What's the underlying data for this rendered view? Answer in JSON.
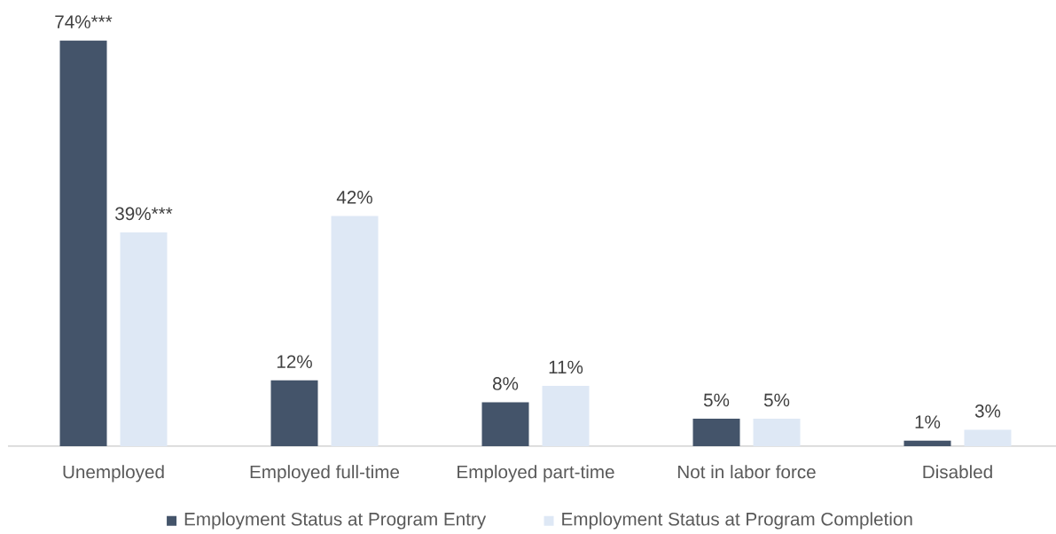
{
  "chart_data": {
    "type": "bar",
    "categories": [
      "Unemployed",
      "Employed full-time",
      "Employed part-time",
      "Not in labor force",
      "Disabled"
    ],
    "series": [
      {
        "name": "Employment Status at Program Entry",
        "color": "#44546a",
        "values": [
          74,
          12,
          8,
          5,
          1
        ],
        "value_labels": [
          "74%***",
          "12%",
          "8%",
          "5%",
          "1%"
        ]
      },
      {
        "name": "Employment Status at Program Completion",
        "color": "#dee8f5",
        "values": [
          39,
          42,
          11,
          5,
          3
        ],
        "value_labels": [
          "39%***",
          "42%",
          "11%",
          "5%",
          "3%"
        ]
      }
    ],
    "legend": "bottom",
    "tick_labels": "x"
  }
}
